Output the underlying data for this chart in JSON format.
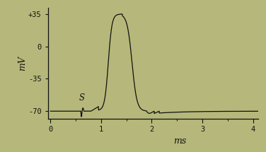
{
  "bg_color": "#b5b87a",
  "line_color": "#111111",
  "ylabel": "mV",
  "xlabel": "ms",
  "yticks": [
    -70,
    -35,
    0,
    35
  ],
  "yticklabels": [
    "-70",
    "-35",
    "0",
    "+35"
  ],
  "xticks": [
    0,
    1,
    2,
    3,
    4
  ],
  "xticklabels": [
    "0",
    "1",
    "2",
    "3",
    "4"
  ],
  "ylim": [
    -78,
    42
  ],
  "xlim": [
    -0.05,
    4.1
  ],
  "stimulus_label": "S",
  "stimulus_x": 0.63,
  "stimulus_y": -58,
  "figsize": [
    3.76,
    2.15
  ],
  "dpi": 100
}
